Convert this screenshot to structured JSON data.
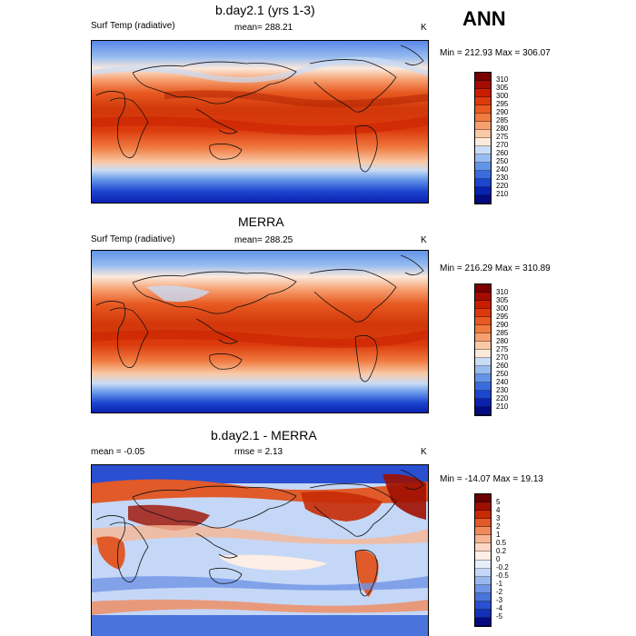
{
  "season": "ANN",
  "units": "K",
  "panels": [
    {
      "title": "b.day2.1 (yrs 1-3)",
      "left_label": "Surf Temp (radiative)",
      "center_label": "mean= 288.21",
      "right_label": "K",
      "minmax": "Min = 212.93 Max = 306.07",
      "palette": "abs",
      "levels": [
        "310",
        "305",
        "300",
        "295",
        "290",
        "285",
        "280",
        "275",
        "270",
        "260",
        "250",
        "240",
        "230",
        "220",
        "210"
      ]
    },
    {
      "title": "MERRA",
      "left_label": "Surf Temp (radiative)",
      "center_label": "mean= 288.25",
      "right_label": "K",
      "minmax": "Min = 216.29 Max = 310.89",
      "palette": "abs",
      "levels": [
        "310",
        "305",
        "300",
        "295",
        "290",
        "285",
        "280",
        "275",
        "270",
        "260",
        "250",
        "240",
        "230",
        "220",
        "210"
      ]
    },
    {
      "title": "b.day2.1 - MERRA",
      "left_label": "mean =  -0.05",
      "center_label": "rmse =   2.13",
      "right_label": "K",
      "minmax": "Min = -14.07 Max =  19.13",
      "palette": "diff",
      "levels": [
        "5",
        "4",
        "3",
        "2",
        "1",
        "0.5",
        "0.2",
        "0",
        "-0.2",
        "-0.5",
        "-1",
        "-2",
        "-3",
        "-4",
        "-5"
      ]
    }
  ],
  "colors": {
    "abs": [
      "#7a0000",
      "#a30c00",
      "#c81e00",
      "#db3a0c",
      "#e85a22",
      "#f07a40",
      "#f6a070",
      "#f9c9a7",
      "#fbe9dc",
      "#c9dcf5",
      "#97bcf0",
      "#6394e8",
      "#3a6cde",
      "#1d46cf",
      "#0a21b0",
      "#040a80"
    ],
    "diff": [
      "#6b0000",
      "#9e0f00",
      "#c72b06",
      "#e05a2a",
      "#f08a5c",
      "#f7b693",
      "#fad8c5",
      "#fdeee6",
      "#e7eefb",
      "#c5d7f6",
      "#9ab7f0",
      "#6f95e6",
      "#4a74dc",
      "#2a4fd0",
      "#1230b8",
      "#050a80"
    ]
  }
}
